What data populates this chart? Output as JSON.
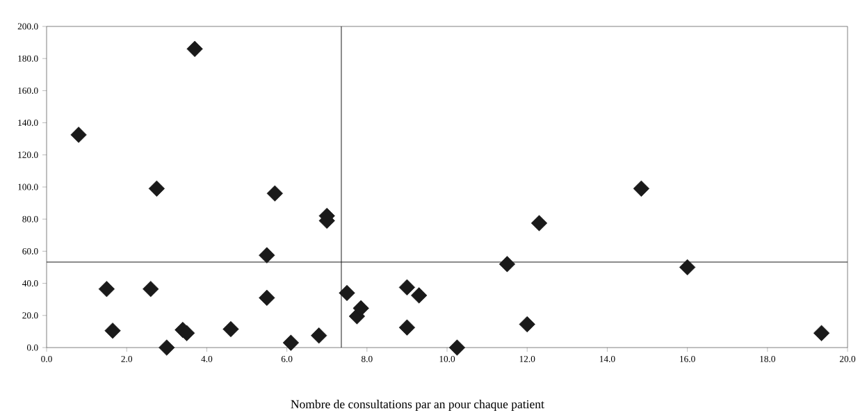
{
  "chart_data": {
    "type": "scatter",
    "xlabel": "Nombre de consultations par an pour chaque patient",
    "x": [
      0.8,
      3.7,
      2.75,
      1.5,
      1.65,
      2.6,
      3.0,
      3.4,
      3.5,
      4.6,
      5.5,
      5.7,
      5.5,
      6.1,
      7.0,
      7.0,
      6.8,
      7.5,
      7.75,
      7.85,
      9.0,
      9.0,
      9.3,
      10.25,
      11.5,
      12.0,
      12.3,
      14.85,
      16.0,
      19.35
    ],
    "values": [
      132.5,
      186,
      99,
      36.5,
      10.5,
      36.5,
      0,
      11,
      9,
      11.5,
      57.5,
      96,
      31,
      3,
      82,
      79,
      7.5,
      34,
      19.5,
      24.5,
      37.5,
      12.5,
      32.5,
      0,
      52,
      14.5,
      77.5,
      99,
      50,
      9
    ],
    "color": "#1a1a1a",
    "marker": "diamond",
    "grid": false,
    "xlim": [
      0,
      20
    ],
    "ylim": [
      0,
      200
    ],
    "xticks": [
      {
        "value": 0,
        "label": "0.0"
      },
      {
        "value": 2,
        "label": "2.0"
      },
      {
        "value": 4,
        "label": "4.0"
      },
      {
        "value": 6,
        "label": "6.0"
      },
      {
        "value": 8,
        "label": "8.0"
      },
      {
        "value": 10,
        "label": "10.0"
      },
      {
        "value": 12,
        "label": "12.0"
      },
      {
        "value": 14,
        "label": "14.0"
      },
      {
        "value": 16,
        "label": "16.0"
      },
      {
        "value": 18,
        "label": "18.0"
      },
      {
        "value": 20,
        "label": "20.0"
      }
    ],
    "yticks": [
      {
        "value": 0,
        "label": "0.0"
      },
      {
        "value": 20,
        "label": "20.0"
      },
      {
        "value": 40,
        "label": "40.0"
      },
      {
        "value": 60,
        "label": "60.0"
      },
      {
        "value": 80,
        "label": "80.0"
      },
      {
        "value": 100,
        "label": "100.0"
      },
      {
        "value": 120,
        "label": "120.0"
      },
      {
        "value": 140,
        "label": "140.0"
      },
      {
        "value": 160,
        "label": "160.0"
      },
      {
        "value": 180,
        "label": "180.0"
      },
      {
        "value": 200,
        "label": "200.0"
      }
    ],
    "ref_lines": [
      {
        "axis": "x",
        "value": 7.36,
        "color": "#1a1a1a"
      },
      {
        "axis": "y",
        "value": 53.2,
        "color": "#1a1a1a"
      }
    ]
  }
}
